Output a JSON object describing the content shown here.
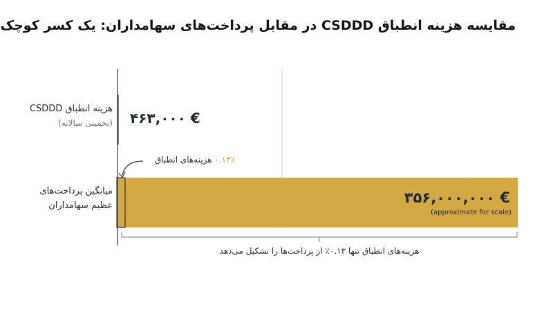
{
  "chart_data": {
    "type": "bar",
    "orientation": "horizontal",
    "title": "مقایسه هزینه انطباق CSDDD در مقابل پرداخت‌های سهامداران: یک کسر کوچک",
    "categories": [
      "هزینه انطباق CSDDD",
      "میانگین پرداخت‌های عظیم سهامداران"
    ],
    "values": [
      463000,
      356000000
    ],
    "value_labels": [
      "۴۶۳,۰۰۰ €",
      "۳۵۶,۰۰۰,۰۰۰ €"
    ],
    "colors": [
      "#3a5ba8",
      "#d4a944"
    ],
    "xlim": [
      0,
      356000000
    ],
    "annotations": {
      "cost_period": "(تخمینی سالانه)",
      "scale_note": "(approximate for scale)",
      "ratio_value": "۰.۱۳٪",
      "ratio_label": "هزینه‌های انطباق",
      "bracket": "هزینه‌های انطباق تنها ۰.۱۳٪ از پرداخت‌ها را تشکیل می‌دهد"
    }
  }
}
